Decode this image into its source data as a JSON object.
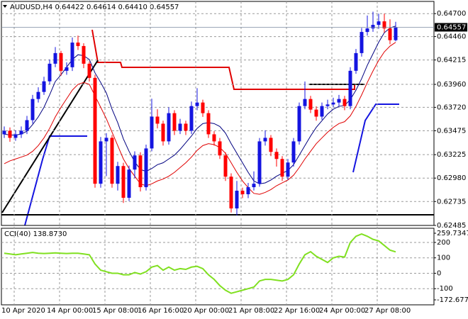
{
  "chart_data": [
    {
      "type": "candlestick",
      "title": "AUDUSD,H4  0.64422 0.64614 0.64410 0.64557",
      "x": [
        "10 Apr 2020",
        null,
        null,
        null,
        null,
        null,
        null,
        null,
        "14 Apr 00:00",
        null,
        null,
        null,
        null,
        null,
        null,
        null,
        "15 Apr 08:00",
        null,
        null,
        null,
        null,
        null,
        null,
        null,
        "16 Apr 16:00",
        null,
        null,
        null,
        null,
        null,
        null,
        null,
        "20 Apr 00:00",
        null,
        null,
        null,
        null,
        null,
        null,
        null,
        "21 Apr 08:00",
        null,
        null,
        null,
        null,
        null,
        null,
        null,
        "22 Apr 16:00",
        null,
        null,
        null,
        null,
        null,
        null,
        null,
        "24 Apr 00:00",
        null,
        null,
        null,
        null,
        null,
        null,
        null,
        "27 Apr 08:00",
        null,
        null,
        null,
        null,
        null
      ],
      "open": [
        0.63438,
        0.63475,
        0.63401,
        0.63438,
        0.63475,
        0.63586,
        0.63807,
        0.63881,
        0.63992,
        0.64176,
        0.64287,
        0.64102,
        0.64139,
        0.64397,
        0.64361,
        0.64176,
        0.64028,
        0.62921,
        0.63364,
        0.63401,
        0.62921,
        0.63106,
        0.62774,
        0.63069,
        0.63217,
        0.62885,
        0.6329,
        0.63623,
        0.63549,
        0.63364,
        0.63659,
        0.63475,
        0.63549,
        0.63475,
        0.63733,
        0.6377,
        0.63659,
        0.63438,
        0.63364,
        0.63217,
        0.62995,
        0.62663,
        0.62848,
        0.62811,
        0.62885,
        0.62921,
        0.63364,
        0.63401,
        0.63254,
        0.6318,
        0.62995,
        0.63143,
        0.63364,
        0.63733,
        0.63807,
        0.63696,
        0.63623,
        0.63733,
        0.6375,
        0.6377,
        0.63807,
        0.63733,
        0.64102,
        0.64287,
        0.64508,
        0.64545,
        0.64582,
        0.64619,
        0.64545,
        0.64422
      ],
      "high": [
        0.6352,
        0.6351,
        0.6348,
        0.6352,
        0.6363,
        0.6385,
        0.6393,
        0.6404,
        0.6422,
        0.6435,
        0.6431,
        0.6419,
        0.6445,
        0.6447,
        0.6439,
        0.642,
        0.6406,
        0.6341,
        0.6345,
        0.6343,
        0.6315,
        0.6314,
        0.6311,
        0.6326,
        0.6325,
        0.6333,
        0.6381,
        0.637,
        0.6358,
        0.6372,
        0.6369,
        0.636,
        0.6358,
        0.6378,
        0.6392,
        0.638,
        0.6369,
        0.6347,
        0.634,
        0.6325,
        0.6303,
        0.6295,
        0.6288,
        0.6293,
        0.6305,
        0.634,
        0.6348,
        0.6343,
        0.6329,
        0.6321,
        0.6318,
        0.634,
        0.6377,
        0.6399,
        0.6384,
        0.6373,
        0.6377,
        0.638,
        0.6382,
        0.6385,
        0.6384,
        0.6414,
        0.6433,
        0.6455,
        0.6468,
        0.6472,
        0.647,
        0.647,
        0.6464,
        0.64614
      ],
      "low": [
        0.634,
        0.6336,
        0.6337,
        0.634,
        0.6344,
        0.6355,
        0.6377,
        0.6385,
        0.6396,
        0.6414,
        0.6405,
        0.6406,
        0.641,
        0.6432,
        0.6413,
        0.6399,
        0.6288,
        0.6288,
        0.63,
        0.6288,
        0.6285,
        0.6272,
        0.6274,
        0.6298,
        0.6284,
        0.6285,
        0.6326,
        0.635,
        0.6332,
        0.6333,
        0.6343,
        0.6344,
        0.6343,
        0.6344,
        0.6369,
        0.6362,
        0.634,
        0.6332,
        0.6318,
        0.6295,
        0.6262,
        0.6259,
        0.6277,
        0.6277,
        0.6285,
        0.6289,
        0.6332,
        0.6321,
        0.631,
        0.6295,
        0.6296,
        0.631,
        0.6333,
        0.637,
        0.6366,
        0.6358,
        0.6359,
        0.637,
        0.6372,
        0.6373,
        0.6369,
        0.637,
        0.6407,
        0.6425,
        0.6447,
        0.6451,
        0.6454,
        0.645,
        0.6438,
        0.6441
      ],
      "close": [
        0.63475,
        0.63401,
        0.63438,
        0.63475,
        0.63586,
        0.63807,
        0.63881,
        0.63992,
        0.64176,
        0.64287,
        0.64102,
        0.64139,
        0.64397,
        0.64361,
        0.64176,
        0.64028,
        0.62921,
        0.63364,
        0.63401,
        0.62921,
        0.63106,
        0.62774,
        0.63069,
        0.63217,
        0.62885,
        0.6329,
        0.63623,
        0.63549,
        0.63364,
        0.63659,
        0.63475,
        0.63549,
        0.63475,
        0.63733,
        0.6377,
        0.63659,
        0.63438,
        0.63364,
        0.63217,
        0.62995,
        0.62663,
        0.62848,
        0.62811,
        0.62885,
        0.62921,
        0.63364,
        0.63401,
        0.63254,
        0.6318,
        0.62995,
        0.63143,
        0.63364,
        0.63733,
        0.63807,
        0.63696,
        0.63623,
        0.63733,
        0.6375,
        0.6377,
        0.63807,
        0.63733,
        0.64102,
        0.64287,
        0.64508,
        0.64545,
        0.64582,
        0.64619,
        0.64545,
        0.64422,
        0.64557
      ],
      "up_color": "#1414e0",
      "down_color": "#ff0000",
      "overlays": [
        {
          "color": "#000080",
          "values": [
            0.6344,
            0.6343,
            0.6343,
            0.6344,
            0.6347,
            0.6354,
            0.6362,
            0.6372,
            0.6385,
            0.6399,
            0.6406,
            0.6414,
            0.6422,
            0.6427,
            0.6426,
            0.6422,
            0.6408,
            0.6398,
            0.6387,
            0.637,
            0.6356,
            0.6339,
            0.6326,
            0.6315,
            0.6307,
            0.6305,
            0.6308,
            0.6312,
            0.6314,
            0.6318,
            0.6322,
            0.6328,
            0.6335,
            0.6342,
            0.635,
            0.6355,
            0.6356,
            0.6355,
            0.6352,
            0.6345,
            0.6334,
            0.6324,
            0.6314,
            0.6304,
            0.6295,
            0.6292,
            0.6293,
            0.6296,
            0.63,
            0.6303,
            0.6306,
            0.6312,
            0.6322,
            0.6332,
            0.6342,
            0.6351,
            0.6358,
            0.6365,
            0.637,
            0.6373,
            0.6374,
            0.638,
            0.639,
            0.6402,
            0.6416,
            0.6428,
            0.644,
            0.645,
            0.6455,
            0.6457
          ]
        },
        {
          "color": "#e00000",
          "values": [
            0.6313,
            0.6316,
            0.6318,
            0.632,
            0.6322,
            0.6326,
            0.6332,
            0.634,
            0.635,
            0.6362,
            0.6372,
            0.6381,
            0.639,
            0.6396,
            0.6398,
            0.6396,
            0.6384,
            0.6372,
            0.636,
            0.6346,
            0.6332,
            0.6318,
            0.6308,
            0.63,
            0.6292,
            0.629,
            0.6292,
            0.6295,
            0.6297,
            0.63,
            0.6304,
            0.6309,
            0.6314,
            0.632,
            0.6327,
            0.6332,
            0.6334,
            0.6333,
            0.633,
            0.6324,
            0.6314,
            0.6304,
            0.6295,
            0.6288,
            0.6282,
            0.6281,
            0.6283,
            0.6286,
            0.629,
            0.6293,
            0.6296,
            0.6301,
            0.6309,
            0.6318,
            0.6326,
            0.6334,
            0.634,
            0.6346,
            0.6351,
            0.6355,
            0.6357,
            0.6363,
            0.6373,
            0.6385,
            0.6398,
            0.641,
            0.6421,
            0.643,
            0.6436,
            0.644
          ]
        }
      ],
      "ylim": [
        0.62485,
        0.6482
      ],
      "yticks": [
        {
          "value": 0.647,
          "label": "0.64700"
        },
        {
          "value": 0.6446,
          "label": "0.64460"
        },
        0.64215,
        {
          "value": 0.6396,
          "label": "0.63960"
        },
        {
          "value": 0.6372,
          "label": "0.63720"
        },
        0.63475,
        0.63225,
        {
          "value": 0.6298,
          "label": "0.62980"
        },
        0.62735,
        0.62485
      ],
      "grid": true
    },
    {
      "type": "line",
      "title": "CCI(40) 138.8730",
      "color": "#80e020",
      "values": [
        130,
        125,
        120,
        125,
        130,
        135,
        130,
        128,
        130,
        132,
        130,
        128,
        130,
        130,
        125,
        120,
        60,
        20,
        10,
        0,
        0,
        -10,
        -10,
        5,
        -5,
        10,
        40,
        50,
        20,
        40,
        20,
        30,
        25,
        40,
        45,
        30,
        -10,
        -40,
        -80,
        -110,
        -130,
        -120,
        -110,
        -100,
        -90,
        -50,
        -40,
        -40,
        -45,
        -50,
        -40,
        -10,
        60,
        120,
        140,
        110,
        90,
        70,
        100,
        110,
        105,
        200,
        240,
        255,
        240,
        220,
        210,
        180,
        150,
        138.873
      ],
      "ylim": [
        -172.677,
        259.7347
      ],
      "yticks": [
        259.7347,
        200,
        100,
        0,
        -100,
        -172.677
      ],
      "grid": true
    }
  ]
}
